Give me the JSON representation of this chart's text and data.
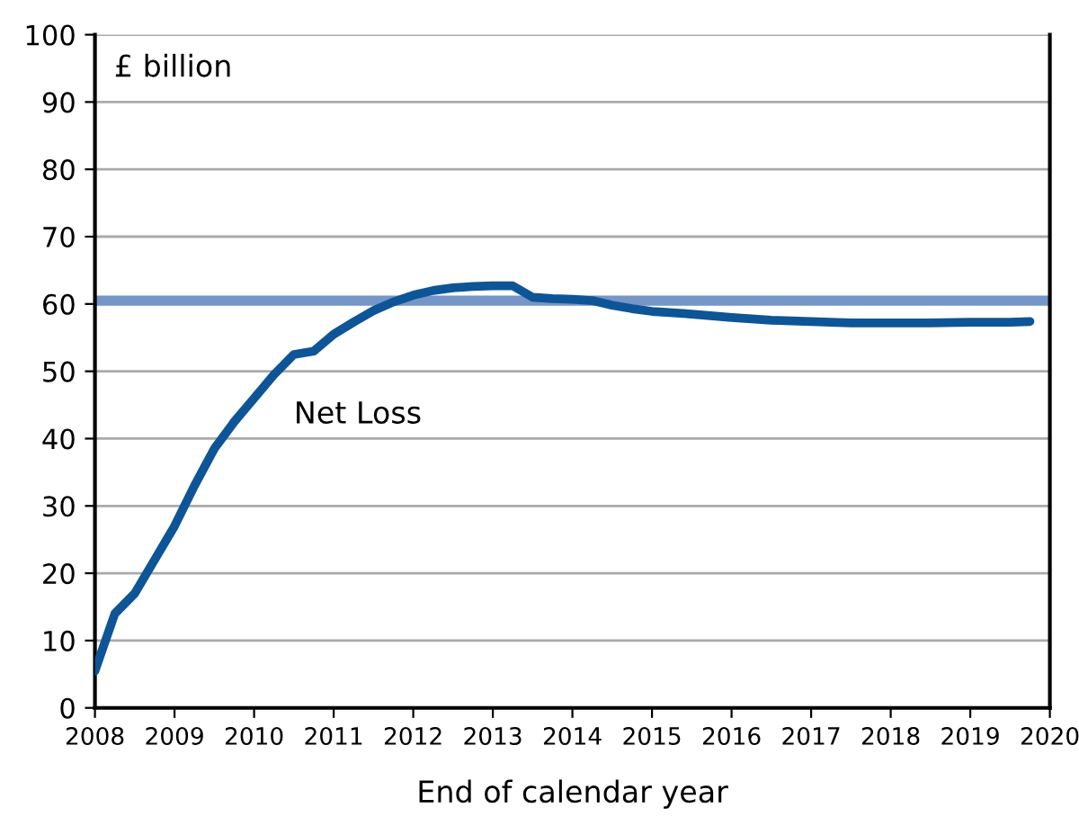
{
  "chart_data": {
    "type": "line",
    "ylabel": "£ billion",
    "xlabel": "End of calendar year",
    "xlim": [
      2008,
      2020
    ],
    "xticks": [
      2008,
      2009,
      2010,
      2011,
      2012,
      2013,
      2014,
      2015,
      2016,
      2017,
      2018,
      2019,
      2020
    ],
    "ylim": [
      0,
      100
    ],
    "yticks": [
      0,
      10,
      20,
      30,
      40,
      50,
      60,
      70,
      80,
      90,
      100
    ],
    "grid": "y",
    "legend": false,
    "marker": "none",
    "line_style": "solid",
    "ref_lines": [
      {
        "axis": "y",
        "value": 60.5,
        "color": "#7596c6"
      }
    ],
    "series": [
      {
        "name": "Net Loss",
        "color": "#0d5597",
        "x": [
          2008.0,
          2008.25,
          2008.5,
          2008.75,
          2009.0,
          2009.25,
          2009.5,
          2009.75,
          2010.0,
          2010.25,
          2010.5,
          2010.75,
          2011.0,
          2011.25,
          2011.5,
          2011.75,
          2012.0,
          2012.25,
          2012.5,
          2012.75,
          2013.0,
          2013.25,
          2013.5,
          2013.75,
          2014.0,
          2014.25,
          2014.5,
          2014.75,
          2015.0,
          2015.5,
          2016.0,
          2016.5,
          2017.0,
          2017.5,
          2018.0,
          2018.5,
          2019.0,
          2019.5,
          2019.75
        ],
        "values": [
          5.5,
          14,
          17,
          22,
          27,
          33,
          38.5,
          42.5,
          46,
          49.5,
          52.5,
          53,
          55.5,
          57.3,
          59,
          60.3,
          61.3,
          62,
          62.4,
          62.6,
          62.7,
          62.7,
          61,
          60.8,
          60.7,
          60.5,
          59.8,
          59.3,
          58.9,
          58.5,
          58,
          57.6,
          57.4,
          57.2,
          57.2,
          57.2,
          57.3,
          57.3,
          57.4
        ]
      }
    ]
  }
}
